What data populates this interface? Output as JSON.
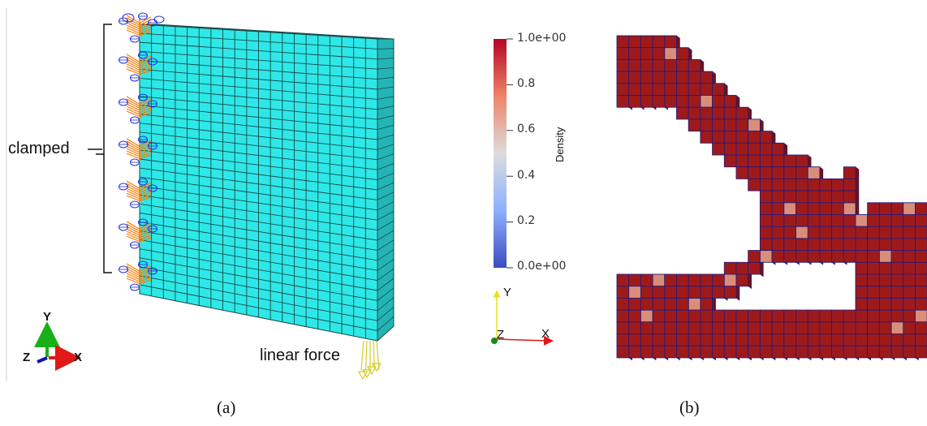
{
  "panel_a": {
    "caption": "(a)",
    "clamped_label": "clamped",
    "force_label": "linear force",
    "axes": {
      "y": "Y",
      "z": "Z",
      "x": "X"
    }
  },
  "panel_b": {
    "caption": "(b)",
    "axes": {
      "y": "Y",
      "z": "Z",
      "x": "X"
    }
  },
  "colorbar": {
    "title": "Density",
    "ticks": [
      "1.0e+00",
      "0.8",
      "0.6",
      "0.4",
      "0.2",
      "0.0e+00"
    ],
    "min": 0.0,
    "max": 1.0,
    "colors": {
      "high": "#b40426",
      "mid": "#dddddd",
      "low": "#3b4cc0"
    }
  },
  "colors": {
    "mesh_face": "#2ee8e8",
    "mesh_line": "#1a4a4a",
    "solid_face": "#9e1a1a",
    "solid_line": "#2a1b7a",
    "partial_face": "#d98e7a",
    "constraint_blue": "#2030e0",
    "constraint_orange": "#ff7a00",
    "force_yellow": "#d4cc2a",
    "axis_green": "#18b018",
    "axis_red": "#e01818",
    "axis_blue": "#1010c0"
  }
}
